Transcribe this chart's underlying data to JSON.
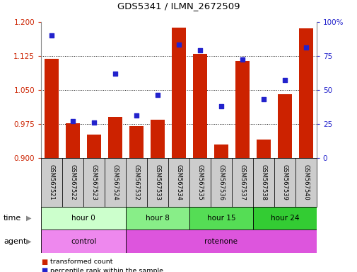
{
  "title": "GDS5341 / ILMN_2672509",
  "samples": [
    "GSM567521",
    "GSM567522",
    "GSM567523",
    "GSM567524",
    "GSM567532",
    "GSM567533",
    "GSM567534",
    "GSM567535",
    "GSM567536",
    "GSM567537",
    "GSM567538",
    "GSM567539",
    "GSM567540"
  ],
  "bar_values": [
    1.119,
    0.976,
    0.951,
    0.99,
    0.97,
    0.984,
    1.187,
    1.13,
    0.93,
    1.113,
    0.94,
    1.04,
    1.185
  ],
  "scatter_values": [
    90,
    27,
    26,
    62,
    31,
    46,
    83,
    79,
    38,
    72,
    43,
    57,
    81
  ],
  "y_min": 0.9,
  "y_max": 1.2,
  "y_ticks": [
    0.9,
    0.975,
    1.05,
    1.125,
    1.2
  ],
  "y2_ticks": [
    0,
    25,
    50,
    75,
    100
  ],
  "bar_color": "#cc2200",
  "scatter_color": "#2222cc",
  "time_groups": [
    {
      "label": "hour 0",
      "start": 0,
      "end": 4,
      "color": "#ccffcc"
    },
    {
      "label": "hour 8",
      "start": 4,
      "end": 7,
      "color": "#88ee88"
    },
    {
      "label": "hour 15",
      "start": 7,
      "end": 10,
      "color": "#55dd55"
    },
    {
      "label": "hour 24",
      "start": 10,
      "end": 13,
      "color": "#33cc33"
    }
  ],
  "agent_groups": [
    {
      "label": "control",
      "start": 0,
      "end": 4,
      "color": "#ee88ee"
    },
    {
      "label": "rotenone",
      "start": 4,
      "end": 13,
      "color": "#dd55dd"
    }
  ],
  "tick_label_color_left": "#cc2200",
  "tick_label_color_right": "#2222cc",
  "sample_bg_color": "#cccccc",
  "legend_items": [
    {
      "label": "transformed count",
      "color": "#cc2200"
    },
    {
      "label": "percentile rank within the sample",
      "color": "#2222cc"
    }
  ],
  "grid_yticks": [
    0.975,
    1.05,
    1.125
  ],
  "fig_width": 5.06,
  "fig_height": 3.84,
  "dpi": 100
}
